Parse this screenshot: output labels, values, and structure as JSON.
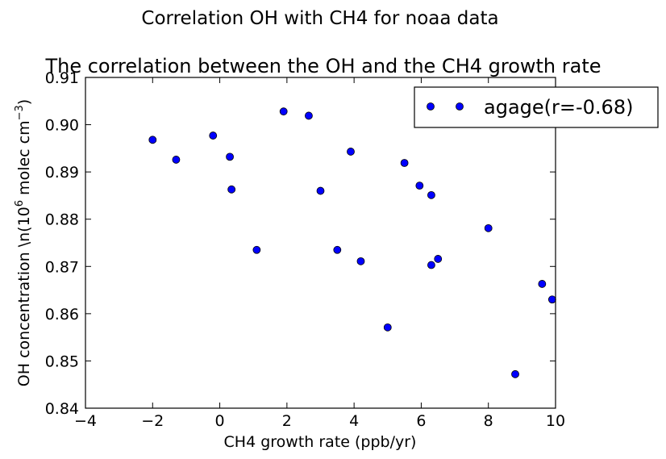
{
  "chart_data": {
    "type": "scatter",
    "suptitle": "Correlation OH with CH4 for noaa data",
    "title": "The correlation between the OH and the CH4 growth rate",
    "xlabel": "CH4 growth rate (ppb/yr)",
    "ylabel": "OH concentration \\n(10",
    "ylabel_exp1": "6",
    "ylabel_mid": " molec cm",
    "ylabel_exp2": "−3",
    "ylabel_end": ")",
    "xlim": [
      -4,
      10
    ],
    "ylim": [
      0.84,
      0.91
    ],
    "xticks": [
      -4,
      -2,
      0,
      2,
      4,
      6,
      8,
      10
    ],
    "xtick_labels": [
      "−4",
      "−2",
      "0",
      "2",
      "4",
      "6",
      "8",
      "10"
    ],
    "yticks": [
      0.84,
      0.85,
      0.86,
      0.87,
      0.88,
      0.89,
      0.9,
      0.91
    ],
    "ytick_labels": [
      "0.84",
      "0.85",
      "0.86",
      "0.87",
      "0.88",
      "0.89",
      "0.90",
      "0.91"
    ],
    "grid": false,
    "legend_position": "top-right",
    "series": [
      {
        "name": "agage(r=-0.68)",
        "color": "#0000ff",
        "points": [
          {
            "x": -2.0,
            "y": 0.8968
          },
          {
            "x": -1.3,
            "y": 0.8926
          },
          {
            "x": -0.2,
            "y": 0.8977
          },
          {
            "x": 0.3,
            "y": 0.8932
          },
          {
            "x": 0.35,
            "y": 0.8863
          },
          {
            "x": 1.1,
            "y": 0.8735
          },
          {
            "x": 1.9,
            "y": 0.9028
          },
          {
            "x": 2.65,
            "y": 0.9019
          },
          {
            "x": 3.0,
            "y": 0.886
          },
          {
            "x": 3.5,
            "y": 0.8735
          },
          {
            "x": 3.9,
            "y": 0.8943
          },
          {
            "x": 4.2,
            "y": 0.8711
          },
          {
            "x": 5.0,
            "y": 0.8571
          },
          {
            "x": 5.5,
            "y": 0.8919
          },
          {
            "x": 5.95,
            "y": 0.8871
          },
          {
            "x": 6.3,
            "y": 0.8703
          },
          {
            "x": 6.3,
            "y": 0.8851
          },
          {
            "x": 6.5,
            "y": 0.8716
          },
          {
            "x": 8.0,
            "y": 0.8781
          },
          {
            "x": 8.8,
            "y": 0.8472
          },
          {
            "x": 9.6,
            "y": 0.8663
          },
          {
            "x": 9.9,
            "y": 0.863
          }
        ]
      }
    ]
  }
}
